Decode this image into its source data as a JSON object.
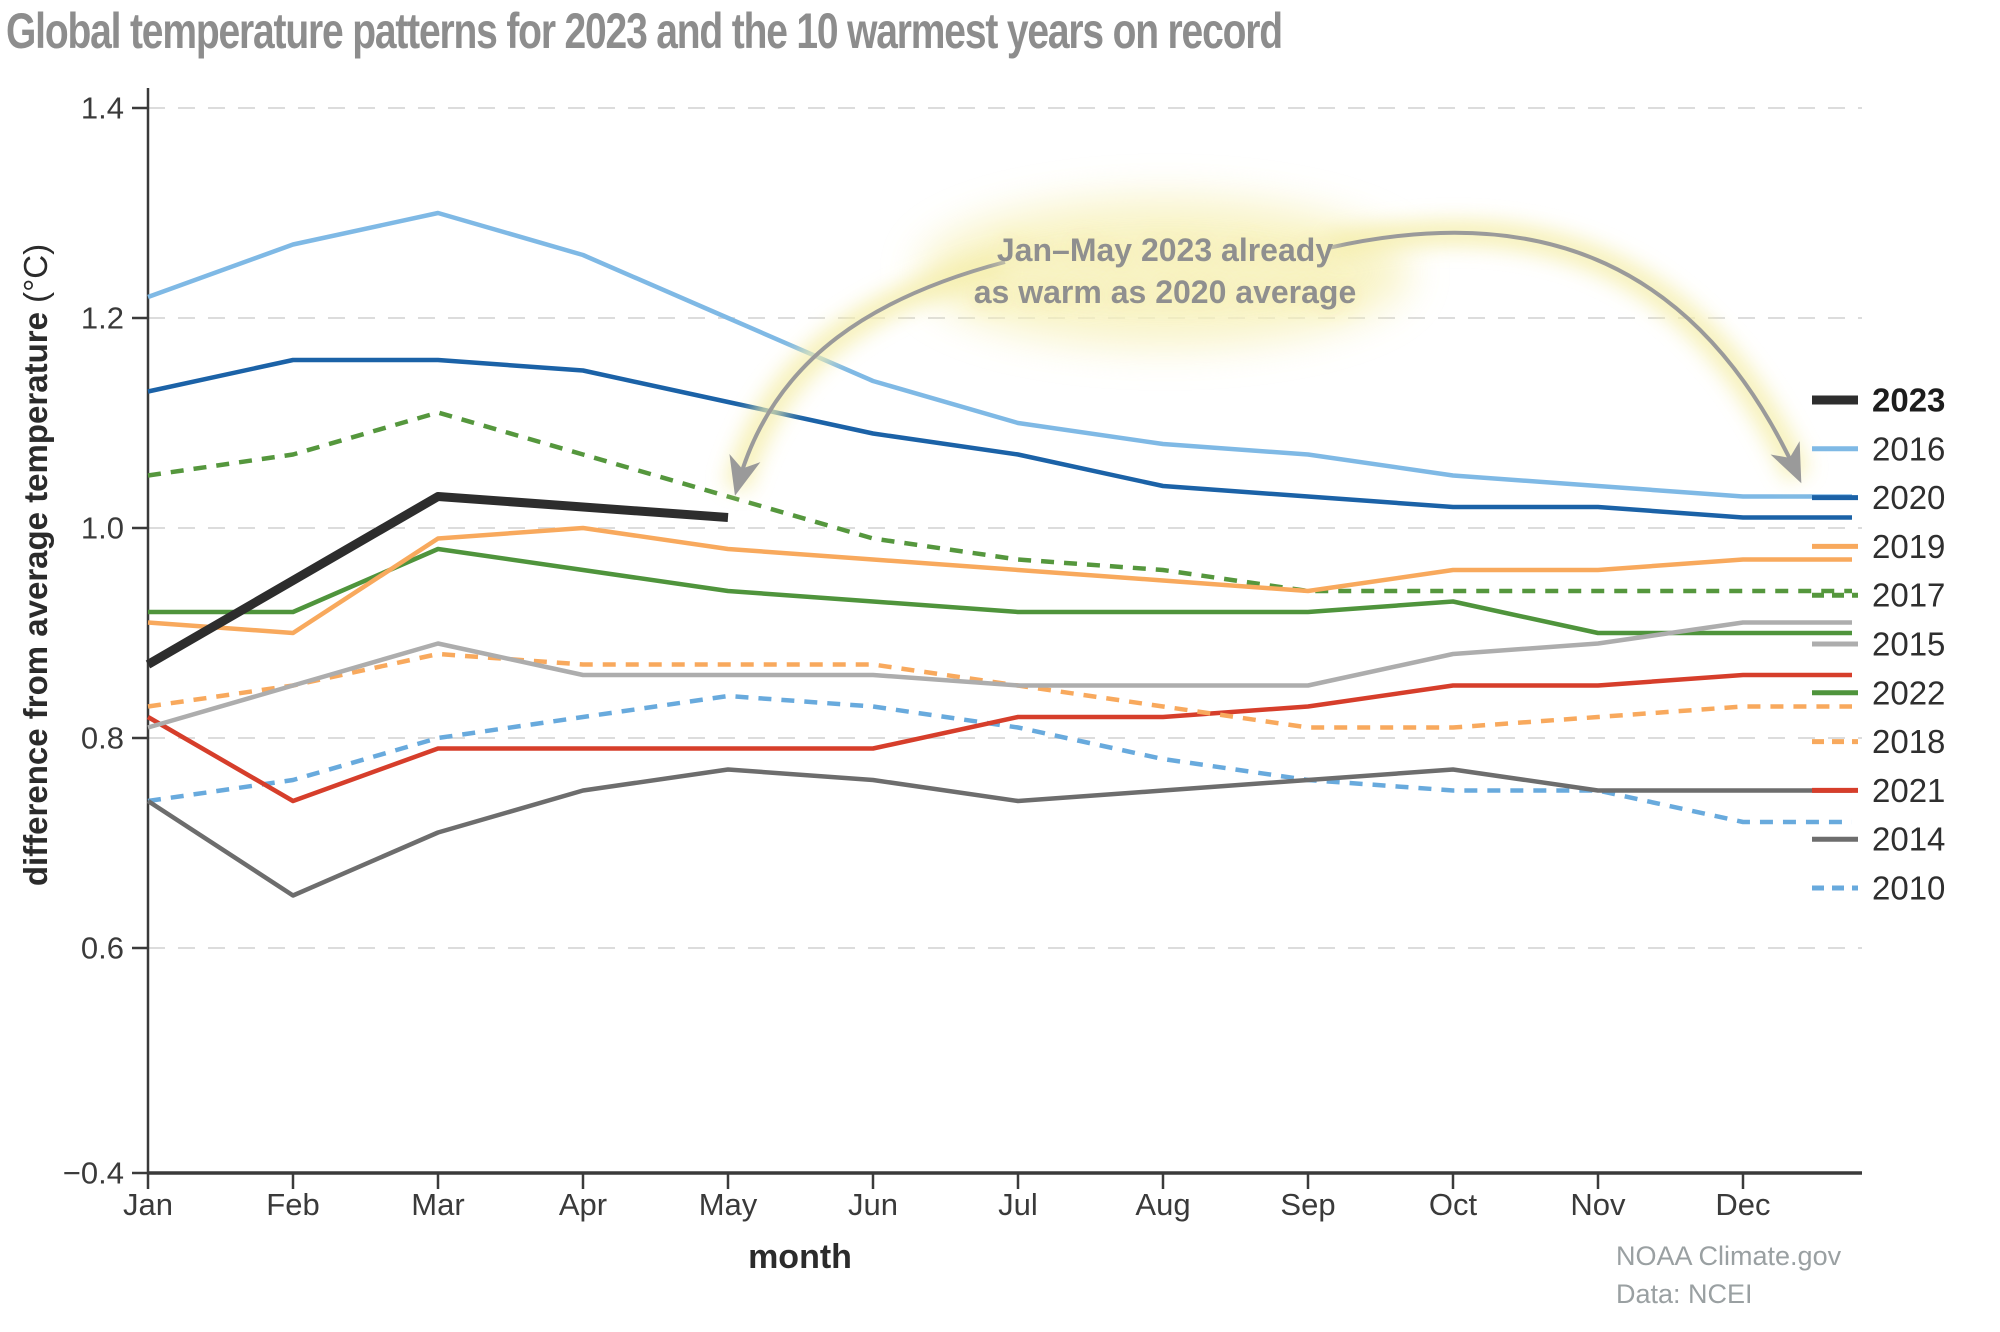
{
  "title": "Global temperature patterns for 2023 and the 10 warmest years on record",
  "annotation": {
    "line1": "Jan–May 2023 already",
    "line2": "as warm as 2020 average"
  },
  "footer": {
    "line1": "NOAA Climate.gov",
    "line2": "Data: NCEI"
  },
  "colors": {
    "accent_glow": "#f5eeac",
    "arrow_gray": "#9a9a9a",
    "grid_gray": "#dcdcdc",
    "axis_dark": "#3a3a3a",
    "tick_text": "#3a3a3a",
    "legend_text": "#2f2f2f"
  },
  "chart_data": {
    "type": "line",
    "title": "Global temperature patterns for 2023 and the 10 warmest years on record",
    "xlabel": "month",
    "ylabel": "difference from average temperature (°C)",
    "ylabel_main": "difference from average temperature",
    "ylabel_unit": "(°C)",
    "grid": "dashed horizontal",
    "legend_position": "right",
    "categories": [
      "Jan",
      "Feb",
      "Mar",
      "Apr",
      "May",
      "Jun",
      "Jul",
      "Aug",
      "Sep",
      "Oct",
      "Nov",
      "Dec"
    ],
    "y_ticks": [
      {
        "label": "1.4",
        "value": 1.4
      },
      {
        "label": "1.2",
        "value": 1.2
      },
      {
        "label": "1.0",
        "value": 1.0
      },
      {
        "label": "0.8",
        "value": 0.8
      },
      {
        "label": "0.6",
        "value": 0.6
      },
      {
        "label": "−0.4",
        "value": -0.4
      }
    ],
    "series": [
      {
        "name": "2023",
        "color": "#2d2d2d",
        "dashed": false,
        "bold": true,
        "values": [
          0.87,
          0.95,
          1.03,
          1.02,
          1.01
        ]
      },
      {
        "name": "2016",
        "color": "#7fb9e5",
        "dashed": false,
        "values": [
          1.22,
          1.27,
          1.3,
          1.26,
          1.2,
          1.14,
          1.1,
          1.08,
          1.07,
          1.05,
          1.04,
          1.03
        ]
      },
      {
        "name": "2020",
        "color": "#1b62a7",
        "dashed": false,
        "values": [
          1.13,
          1.16,
          1.16,
          1.15,
          1.12,
          1.09,
          1.07,
          1.04,
          1.03,
          1.02,
          1.02,
          1.01
        ]
      },
      {
        "name": "2019",
        "color": "#f8a95d",
        "dashed": false,
        "values": [
          0.91,
          0.9,
          0.99,
          1.0,
          0.98,
          0.97,
          0.96,
          0.95,
          0.94,
          0.96,
          0.96,
          0.97
        ]
      },
      {
        "name": "2017",
        "color": "#55973d",
        "dashed": true,
        "values": [
          1.05,
          1.07,
          1.11,
          1.07,
          1.03,
          0.99,
          0.97,
          0.96,
          0.94,
          0.94,
          0.94,
          0.94
        ]
      },
      {
        "name": "2015",
        "color": "#adadad",
        "dashed": false,
        "values": [
          0.81,
          0.85,
          0.89,
          0.86,
          0.86,
          0.86,
          0.85,
          0.85,
          0.85,
          0.88,
          0.89,
          0.91
        ]
      },
      {
        "name": "2022",
        "color": "#4f943c",
        "dashed": false,
        "values": [
          0.92,
          0.92,
          0.98,
          0.96,
          0.94,
          0.93,
          0.92,
          0.92,
          0.92,
          0.93,
          0.9,
          0.9
        ]
      },
      {
        "name": "2018",
        "color": "#f8a95d",
        "dashed": true,
        "values": [
          0.83,
          0.85,
          0.88,
          0.87,
          0.87,
          0.87,
          0.85,
          0.83,
          0.81,
          0.81,
          0.82,
          0.83
        ]
      },
      {
        "name": "2021",
        "color": "#d63e2b",
        "dashed": false,
        "values": [
          0.82,
          0.74,
          0.79,
          0.79,
          0.79,
          0.79,
          0.82,
          0.82,
          0.83,
          0.85,
          0.85,
          0.86
        ]
      },
      {
        "name": "2014",
        "color": "#6d6d6d",
        "dashed": false,
        "values": [
          0.74,
          0.65,
          0.71,
          0.75,
          0.77,
          0.76,
          0.74,
          0.75,
          0.76,
          0.77,
          0.75,
          0.75
        ]
      },
      {
        "name": "2010",
        "color": "#68aadd",
        "dashed": true,
        "values": [
          0.74,
          0.76,
          0.8,
          0.82,
          0.84,
          0.83,
          0.81,
          0.78,
          0.76,
          0.75,
          0.75,
          0.72
        ]
      }
    ]
  }
}
